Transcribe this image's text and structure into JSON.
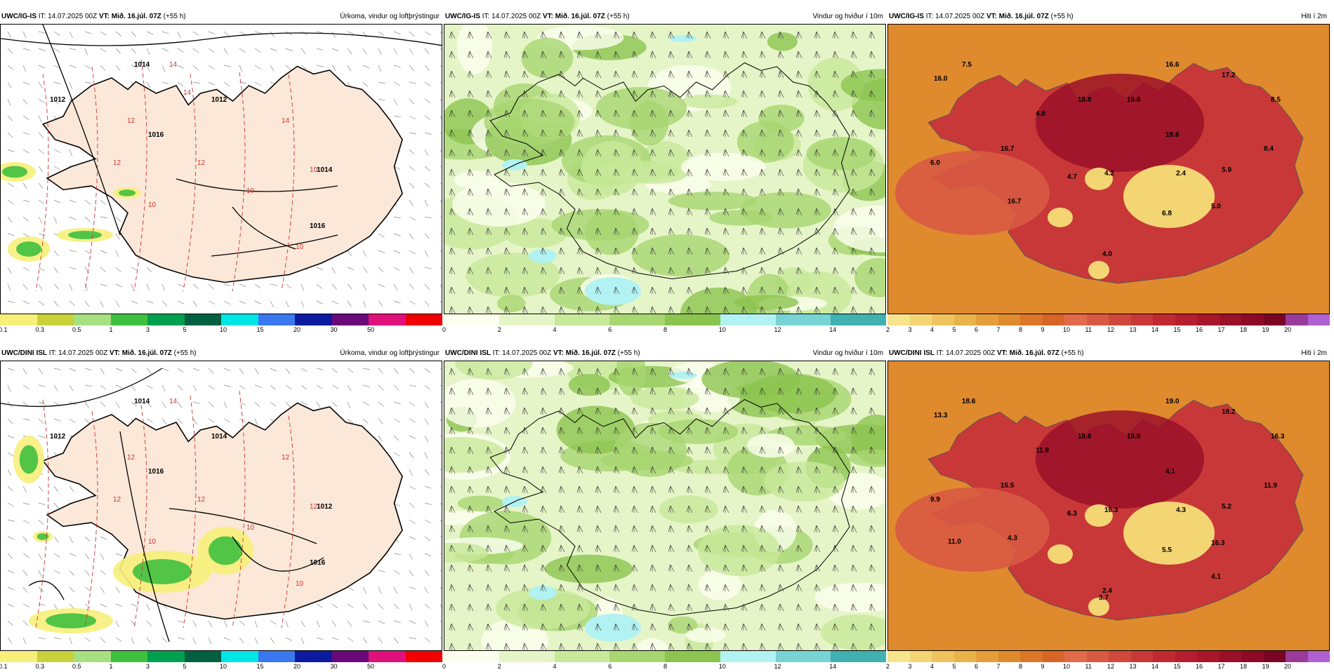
{
  "rows": [
    {
      "panels": [
        {
          "model": "UWC/IG-IS",
          "it": "IT: 14.07.2025 00Z",
          "vt": "VT: Mið. 16.júl. 07Z",
          "lead": "(+55 h)",
          "title": "Úrkoma, vindur og loftþrýstingur",
          "kind": "precip"
        },
        {
          "model": "UWC/IG-IS",
          "it": "IT: 14.07.2025 00Z",
          "vt": "VT: Mið. 16.júl. 07Z",
          "lead": "(+55 h)",
          "title": "Vindur og hviður í 10m",
          "kind": "wind"
        },
        {
          "model": "UWC/IG-IS",
          "it": "IT: 14.07.2025 00Z",
          "vt": "VT: Mið. 16.júl. 07Z",
          "lead": "(+55 h)",
          "title": "Hiti í 2m",
          "kind": "temp"
        }
      ]
    },
    {
      "panels": [
        {
          "model": "UWC/DINI ISL",
          "it": "IT: 14.07.2025 00Z",
          "vt": "VT: Mið. 16.júl. 07Z",
          "lead": "(+55 h)",
          "title": "Úrkoma, vindur og loftþrýstingur",
          "kind": "precip"
        },
        {
          "model": "UWC/DINI ISL",
          "it": "IT: 14.07.2025 00Z",
          "vt": "VT: Mið. 16.júl. 07Z",
          "lead": "(+55 h)",
          "title": "Vindur og hviður í 10m",
          "kind": "wind"
        },
        {
          "model": "UWC/DINI ISL",
          "it": "IT: 14.07.2025 00Z",
          "vt": "VT: Mið. 16.júl. 07Z",
          "lead": "(+55 h)",
          "title": "Hiti í 2m",
          "kind": "temp"
        }
      ]
    }
  ],
  "colorbars": {
    "precip": {
      "ticks": [
        "0.1",
        "0.3",
        "0.5",
        "1",
        "3",
        "5",
        "10",
        "15",
        "20",
        "30",
        "50"
      ],
      "colors": [
        "#f6f07a",
        "#c9d23a",
        "#a6e080",
        "#3fbf3f",
        "#00a050",
        "#006040",
        "#00e5e5",
        "#3a78f0",
        "#0c1aa0",
        "#6a0a7a",
        "#e0107a",
        "#f00000"
      ]
    },
    "wind": {
      "ticks": [
        "0",
        "2",
        "4",
        "6",
        "8",
        "10",
        "12",
        "14"
      ],
      "colors": [
        "#fcfff0",
        "#e6f5c8",
        "#c8e89a",
        "#a8d670",
        "#8cc450",
        "#b2f2f2",
        "#78d4d4",
        "#40b0b0"
      ]
    },
    "temp": {
      "ticks": [
        "2",
        "3",
        "4",
        "5",
        "6",
        "7",
        "8",
        "9",
        "10",
        "11",
        "12",
        "13",
        "14",
        "15",
        "16",
        "17",
        "18",
        "19",
        "20"
      ],
      "colors": [
        "#f8e48c",
        "#f4d574",
        "#efc45e",
        "#eab24a",
        "#e59f3a",
        "#e08a2e",
        "#dc7628",
        "#d86426",
        "#e06a4a",
        "#d85a42",
        "#d0483c",
        "#c83838",
        "#bf2a32",
        "#b41e2e",
        "#a8162a",
        "#9a1028",
        "#8c0a26",
        "#7a0424",
        "#9a3a9a",
        "#b060d0"
      ]
    }
  },
  "map_labels": {
    "r0_precip": [
      "1014",
      "1012",
      "1012",
      "1016",
      "1014",
      "1016",
      "14",
      "14",
      "12",
      "12",
      "10",
      "10",
      "10",
      "10",
      "12",
      "14"
    ],
    "r1_precip": [
      "1014",
      "1012",
      "1014",
      "1016",
      "1012",
      "1016",
      "14",
      "12",
      "12",
      "12",
      "10",
      "10",
      "12",
      "10",
      "12"
    ],
    "r0_temp": [
      "7.5",
      "16.6",
      "17.2",
      "16.0",
      "18.8",
      "19.6",
      "8.5",
      "4.8",
      "18.6",
      "16.7",
      "8.4",
      "6.0",
      "4.7",
      "4.2",
      "2.4",
      "5.9",
      "16.7",
      "6.8",
      "5.0",
      "4.0"
    ],
    "r1_temp": [
      "18.6",
      "19.0",
      "18.2",
      "13.3",
      "18.6",
      "16.0",
      "16.3",
      "11.9",
      "4.1",
      "15.5",
      "11.9",
      "9.9",
      "6.3",
      "16.3",
      "4.3",
      "5.2",
      "4.3",
      "5.5",
      "16.3",
      "2.4",
      "11.0",
      "4.1",
      "3.7"
    ]
  }
}
